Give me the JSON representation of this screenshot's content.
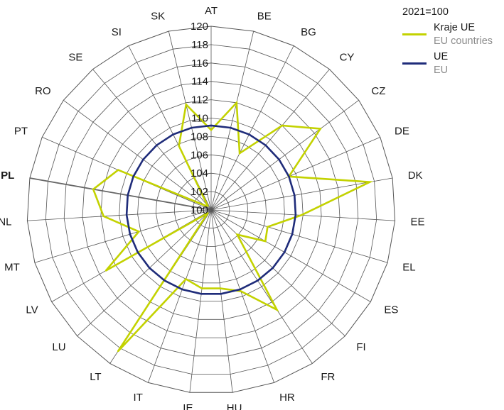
{
  "chart_data": {
    "type": "radar",
    "base_note": "2021=100",
    "categories": [
      "AT",
      "BE",
      "BG",
      "CY",
      "CZ",
      "DE",
      "DK",
      "EE",
      "EL",
      "ES",
      "FI",
      "FR",
      "HR",
      "HU",
      "IE",
      "IT",
      "LT",
      "LU",
      "LV",
      "MT",
      "NL",
      "PL",
      "PT",
      "RO",
      "SE",
      "SI",
      "SK"
    ],
    "highlight_category": "PL",
    "r_ticks": [
      100,
      102,
      104,
      106,
      108,
      110,
      112,
      114,
      116,
      118,
      120
    ],
    "rlim": [
      100,
      120
    ],
    "series": [
      {
        "name": "Kraje UE",
        "name_en": "EU countries",
        "color": "#c3d200",
        "values": [
          108.7,
          112.0,
          106.9,
          112.0,
          114.8,
          109.2,
          117.5,
          109.8,
          106.4,
          106.8,
          103.9,
          113.0,
          109.4,
          108.6,
          108.6,
          108.0,
          118.4,
          100.5,
          113.2,
          108.2,
          111.7,
          113.0,
          111.0,
          100.8,
          100.6,
          107.8,
          111.8
        ]
      },
      {
        "name": "UE",
        "name_en": "EU",
        "color": "#1f2c7a",
        "values": [
          109.2,
          109.2,
          109.2,
          109.2,
          109.2,
          109.2,
          109.2,
          109.2,
          109.2,
          109.2,
          109.2,
          109.2,
          109.2,
          109.2,
          109.2,
          109.2,
          109.2,
          109.2,
          109.2,
          109.2,
          109.2,
          109.2,
          109.2,
          109.2,
          109.2,
          109.2,
          109.2
        ]
      }
    ],
    "grid": true,
    "legend_position": "top-right"
  }
}
